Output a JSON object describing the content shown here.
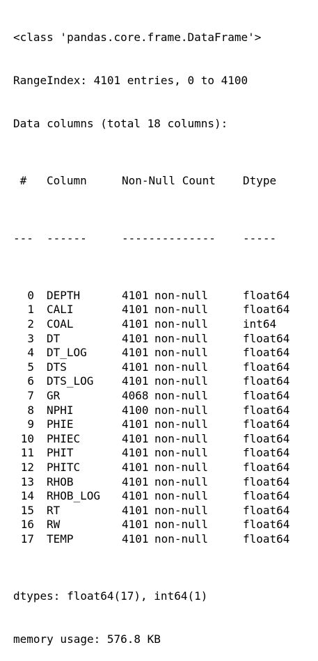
{
  "output": {
    "class_line": "<class 'pandas.core.frame.DataFrame'>",
    "range_index": "RangeIndex: 4101 entries, 0 to 4100",
    "data_columns": "Data columns (total 18 columns):",
    "header": {
      "idx": " #",
      "column": "Column",
      "non_null": "Non-Null Count",
      "dtype": "Dtype"
    },
    "separator": {
      "idx": "---",
      "column": "------",
      "non_null": "--------------",
      "dtype": "-----"
    },
    "rows": [
      {
        "idx": "0",
        "column": "DEPTH",
        "count": "4101",
        "non_null": "non-null",
        "dtype": "float64"
      },
      {
        "idx": "1",
        "column": "CALI",
        "count": "4101",
        "non_null": "non-null",
        "dtype": "float64"
      },
      {
        "idx": "2",
        "column": "COAL",
        "count": "4101",
        "non_null": "non-null",
        "dtype": "int64"
      },
      {
        "idx": "3",
        "column": "DT",
        "count": "4101",
        "non_null": "non-null",
        "dtype": "float64"
      },
      {
        "idx": "4",
        "column": "DT_LOG",
        "count": "4101",
        "non_null": "non-null",
        "dtype": "float64"
      },
      {
        "idx": "5",
        "column": "DTS",
        "count": "4101",
        "non_null": "non-null",
        "dtype": "float64"
      },
      {
        "idx": "6",
        "column": "DTS_LOG",
        "count": "4101",
        "non_null": "non-null",
        "dtype": "float64"
      },
      {
        "idx": "7",
        "column": "GR",
        "count": "4068",
        "non_null": "non-null",
        "dtype": "float64"
      },
      {
        "idx": "8",
        "column": "NPHI",
        "count": "4100",
        "non_null": "non-null",
        "dtype": "float64"
      },
      {
        "idx": "9",
        "column": "PHIE",
        "count": "4101",
        "non_null": "non-null",
        "dtype": "float64"
      },
      {
        "idx": "10",
        "column": "PHIEC",
        "count": "4101",
        "non_null": "non-null",
        "dtype": "float64"
      },
      {
        "idx": "11",
        "column": "PHIT",
        "count": "4101",
        "non_null": "non-null",
        "dtype": "float64"
      },
      {
        "idx": "12",
        "column": "PHITC",
        "count": "4101",
        "non_null": "non-null",
        "dtype": "float64"
      },
      {
        "idx": "13",
        "column": "RHOB",
        "count": "4101",
        "non_null": "non-null",
        "dtype": "float64"
      },
      {
        "idx": "14",
        "column": "RHOB_LOG",
        "count": "4101",
        "non_null": "non-null",
        "dtype": "float64"
      },
      {
        "idx": "15",
        "column": "RT",
        "count": "4101",
        "non_null": "non-null",
        "dtype": "float64"
      },
      {
        "idx": "16",
        "column": "RW",
        "count": "4101",
        "non_null": "non-null",
        "dtype": "float64"
      },
      {
        "idx": "17",
        "column": "TEMP",
        "count": "4101",
        "non_null": "non-null",
        "dtype": "float64"
      }
    ],
    "dtypes": "dtypes: float64(17), int64(1)",
    "memory_usage": "memory usage: 576.8 KB"
  }
}
